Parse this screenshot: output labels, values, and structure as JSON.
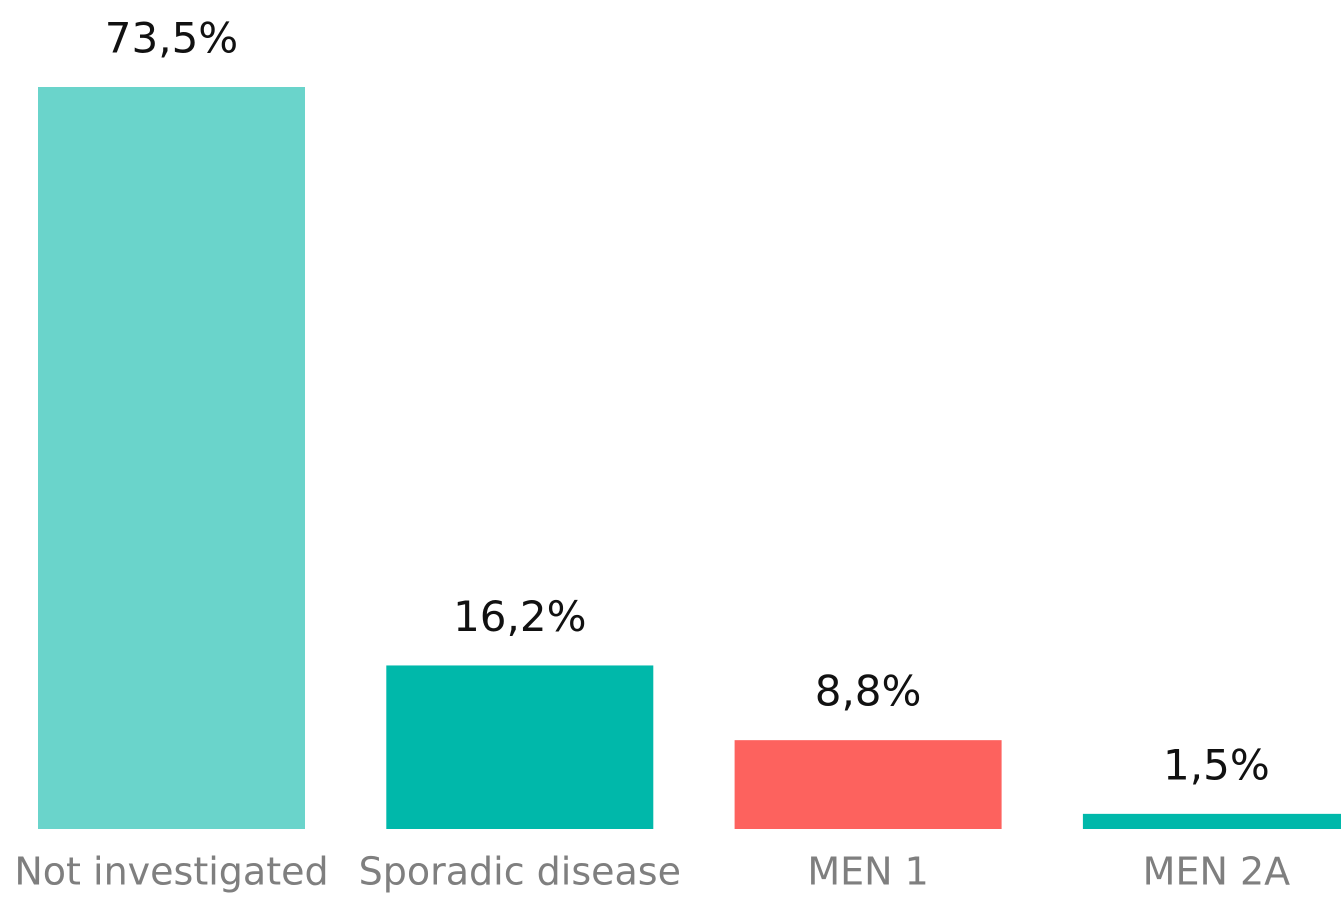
{
  "chart_data": {
    "type": "bar",
    "categories": [
      "Not investigated",
      "Sporadic disease",
      "MEN 1",
      "MEN 2A"
    ],
    "values": [
      73.5,
      16.2,
      8.8,
      1.5
    ],
    "value_labels": [
      "73,5%",
      "16,2%",
      "8,8%",
      "1,5%"
    ],
    "colors": [
      "#6ad4cb",
      "#00b8aa",
      "#fd625e",
      "#00b8aa"
    ]
  }
}
